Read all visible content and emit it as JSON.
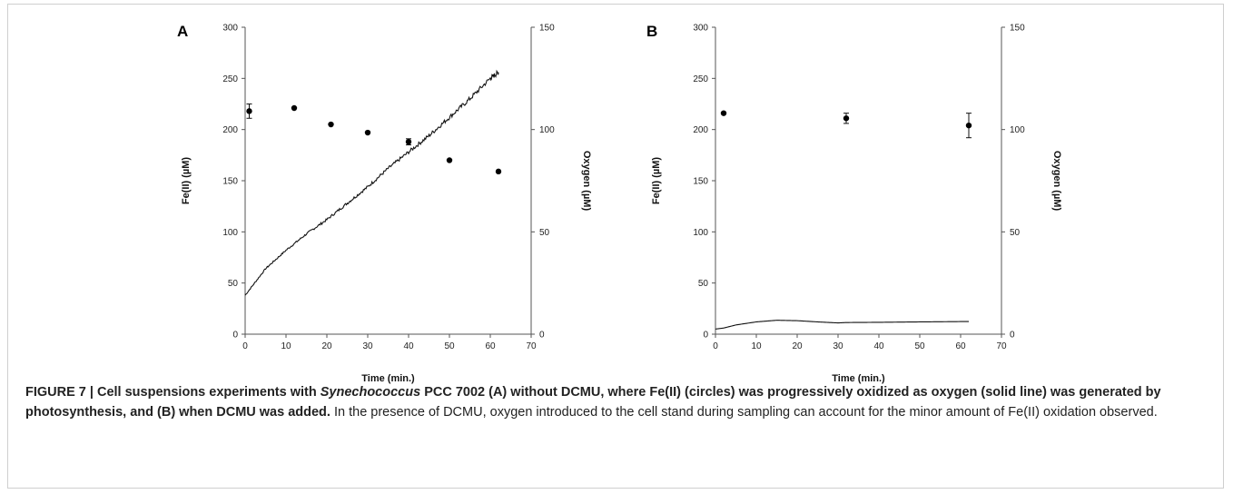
{
  "caption": {
    "figure_label": "FIGURE 7 | Cell suspensions experiments with ",
    "organism": "Synechococcus",
    "bold_rest": " PCC 7002 (A) without DCMU, where Fe(II) (circles) was progressively oxidized as oxygen (solid line) was generated by photosynthesis, and (B) when DCMU was added.",
    "normal_rest": " In the presence of DCMU, oxygen introduced to the cell stand during sampling can account for the minor amount of Fe(II) oxidation observed."
  },
  "chart_data": [
    {
      "panel_label": "A",
      "type": "scatter+line",
      "xlabel": "Time (min.)",
      "ylabel": "Fe(II) (µM)",
      "y2label": "Oxygen (µM)",
      "xlim": [
        0,
        70
      ],
      "ylim": [
        0,
        300
      ],
      "y2lim": [
        0,
        150
      ],
      "x_ticks": [
        "0",
        "10",
        "20",
        "30",
        "40",
        "50",
        "60",
        "70"
      ],
      "y_ticks": [
        "0",
        "50",
        "100",
        "150",
        "200",
        "250",
        "300"
      ],
      "y2_ticks": [
        "0",
        "50",
        "100",
        "150"
      ],
      "series": [
        {
          "kind": "points",
          "axis": "left",
          "x": [
            1,
            12,
            21,
            30,
            40,
            50,
            62
          ],
          "y": [
            218,
            221,
            205,
            197,
            188,
            170,
            159
          ],
          "err": [
            7,
            0,
            0,
            0,
            3,
            0,
            0
          ]
        },
        {
          "kind": "line",
          "axis": "right",
          "x": [
            0,
            5,
            10,
            15,
            20,
            25,
            30,
            35,
            40,
            45,
            50,
            55,
            60,
            62
          ],
          "y": [
            19,
            32,
            41,
            49,
            56,
            64,
            72,
            81,
            89,
            97,
            106,
            115,
            125,
            128
          ]
        }
      ]
    },
    {
      "panel_label": "B",
      "type": "scatter+line",
      "xlabel": "Time (min.)",
      "ylabel": "Fe(II) (µM)",
      "y2label": "Oxygen (µM)",
      "xlim": [
        0,
        70
      ],
      "ylim": [
        0,
        300
      ],
      "y2lim": [
        0,
        150
      ],
      "x_ticks": [
        "0",
        "10",
        "20",
        "30",
        "40",
        "50",
        "60",
        "70"
      ],
      "y_ticks": [
        "0",
        "50",
        "100",
        "150",
        "200",
        "250",
        "300"
      ],
      "y2_ticks": [
        "0",
        "50",
        "100",
        "150"
      ],
      "series": [
        {
          "kind": "points",
          "axis": "left",
          "x": [
            2,
            32,
            62
          ],
          "y": [
            216,
            211,
            204
          ],
          "err": [
            0,
            5,
            12
          ]
        },
        {
          "kind": "line",
          "axis": "right",
          "x": [
            0,
            2,
            5,
            10,
            15,
            20,
            25,
            30,
            32,
            40,
            50,
            62
          ],
          "y": [
            2.5,
            3,
            4.5,
            6,
            6.8,
            6.6,
            6,
            5.5,
            5.7,
            5.8,
            6,
            6.2
          ]
        }
      ]
    }
  ]
}
